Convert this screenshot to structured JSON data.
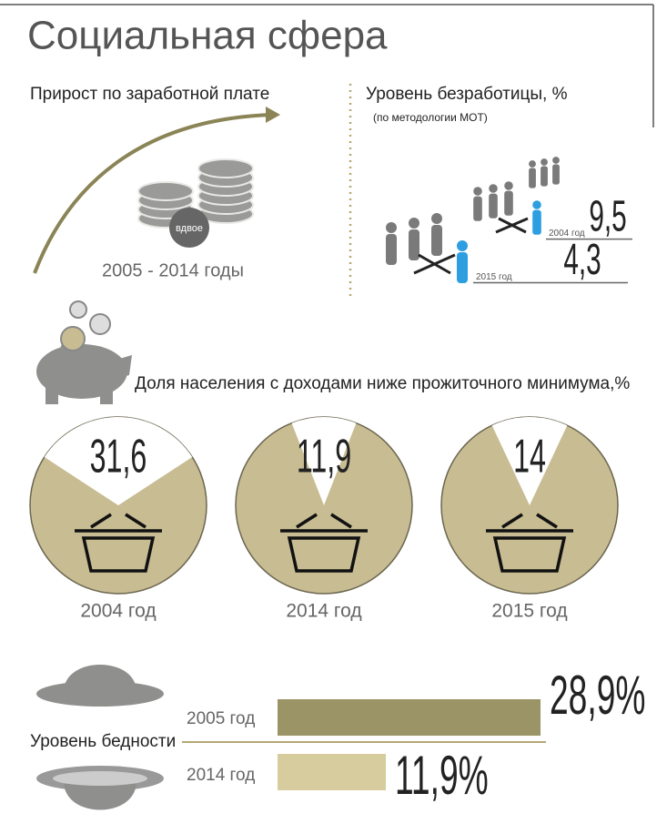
{
  "title": "Социальная сфера",
  "wage_growth": {
    "heading": "Прирост по заработной плате",
    "badge": "вдвое",
    "period": "2005 - 2014 годы"
  },
  "chart_data": [
    {
      "type": "level",
      "title": "Уровень безработицы, %",
      "subtitle": "(по методологии МОТ)",
      "categories": [
        "2004 год",
        "2015 год"
      ],
      "values": [
        9.5,
        4.3
      ],
      "value_labels": [
        "9,5",
        "4,3"
      ],
      "color": "#666666"
    },
    {
      "type": "pie",
      "title": "Доля населения с доходами ниже  прожиточного минимума,%",
      "categories": [
        "2004 год",
        "2014 год",
        "2015 год"
      ],
      "values": [
        31.6,
        11.9,
        14
      ],
      "value_labels": [
        "31,6",
        "11,9",
        "14"
      ],
      "colors": [
        "#c8bc93",
        "#ffffff"
      ]
    },
    {
      "type": "bar",
      "title": "Уровень бедности",
      "categories": [
        "2005 год",
        "2014 год"
      ],
      "values": [
        28.9,
        11.9
      ],
      "value_labels": [
        "28,9%",
        "11,9%"
      ],
      "colors": [
        "#9a9466",
        "#d6cc9e"
      ]
    }
  ]
}
